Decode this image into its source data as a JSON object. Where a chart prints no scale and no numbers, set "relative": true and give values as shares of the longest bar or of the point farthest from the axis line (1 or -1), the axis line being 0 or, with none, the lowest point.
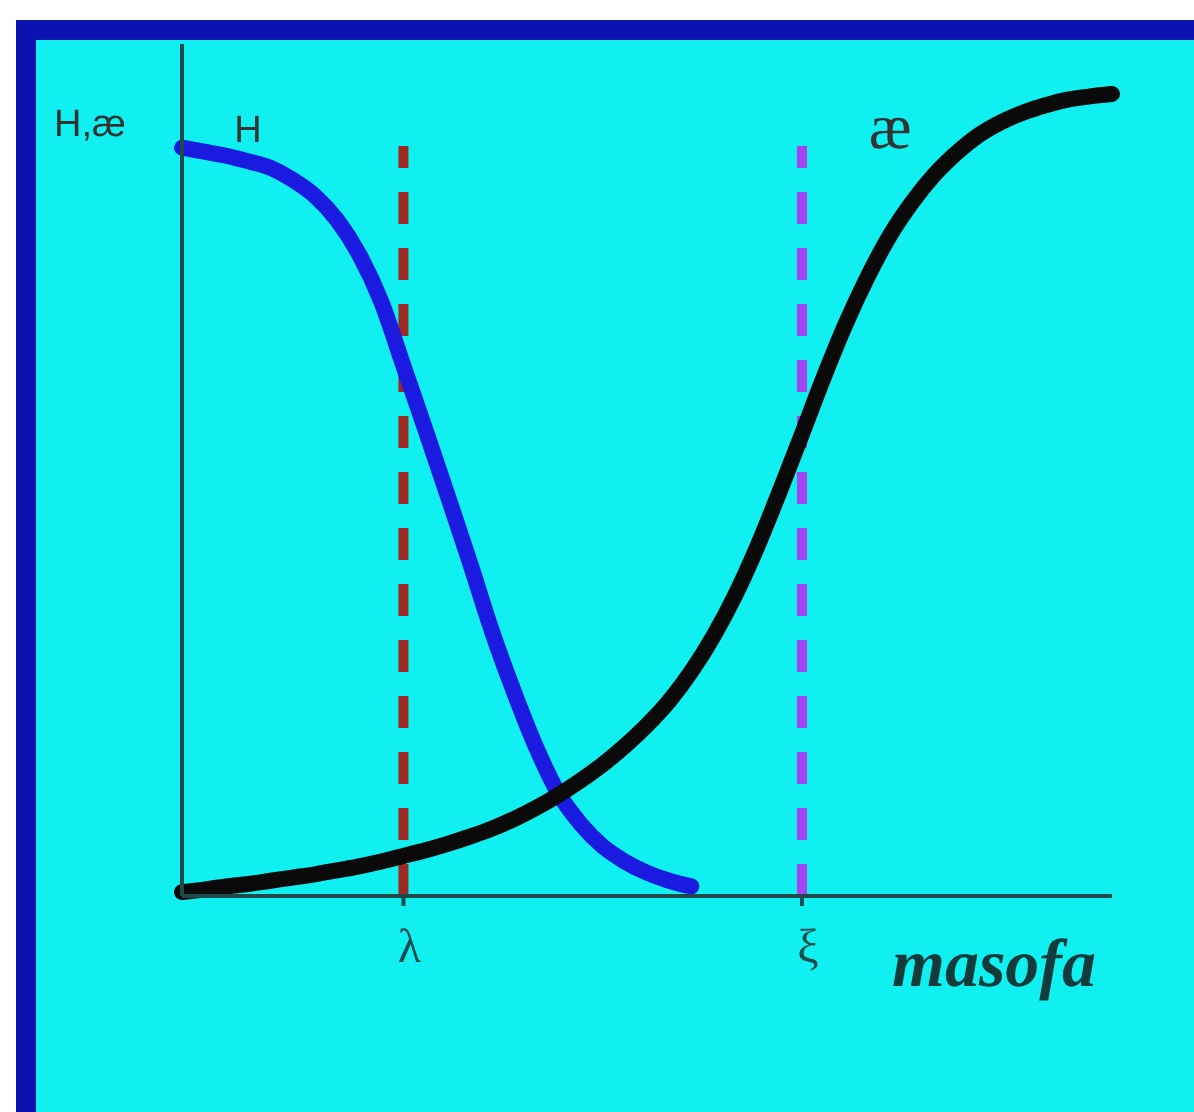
{
  "chart_data": {
    "type": "line",
    "relative": true,
    "ylabel": "H,æ",
    "xlabel": "masofa",
    "categories": [
      null,
      null,
      null,
      null,
      null,
      null,
      null,
      null,
      null,
      null,
      "λ",
      null,
      null,
      null,
      null,
      null,
      null,
      null,
      null,
      null,
      null,
      null,
      null,
      null,
      null,
      null,
      null,
      null,
      "ξ",
      null,
      null,
      null,
      null,
      null,
      null,
      null,
      null,
      null,
      null,
      null,
      null,
      null,
      null
    ],
    "series": [
      {
        "name": "H",
        "color": "#1a1ae0",
        "values": [
          0.933,
          0.928,
          0.923,
          0.916,
          0.908,
          0.893,
          0.873,
          0.843,
          0.8,
          0.741,
          0.661,
          0.581,
          0.499,
          0.416,
          0.33,
          0.254,
          0.185,
          0.128,
          0.09,
          0.062,
          0.043,
          0.029,
          0.019,
          0.012,
          null,
          null,
          null,
          null,
          null,
          null,
          null,
          null,
          null,
          null,
          null,
          null,
          null,
          null,
          null,
          null,
          null,
          null,
          null
        ]
      },
      {
        "name": "æ",
        "color": "#0a0a0a",
        "values": [
          0.005,
          0.008,
          0.012,
          0.015,
          0.019,
          0.023,
          0.027,
          0.032,
          0.037,
          0.043,
          0.05,
          0.057,
          0.065,
          0.074,
          0.084,
          0.096,
          0.11,
          0.126,
          0.144,
          0.164,
          0.187,
          0.213,
          0.243,
          0.28,
          0.324,
          0.376,
          0.437,
          0.505,
          0.576,
          0.648,
          0.715,
          0.774,
          0.825,
          0.866,
          0.9,
          0.927,
          0.949,
          0.965,
          0.977,
          0.986,
          0.993,
          0.997,
          1
        ]
      }
    ],
    "ref_lines": [
      {
        "axis": "x",
        "value": "λ",
        "color": "#9a2a22",
        "line_style": "dashed"
      },
      {
        "axis": "x",
        "value": "ξ",
        "color": "#a545f0",
        "line_style": "dashed"
      }
    ]
  }
}
